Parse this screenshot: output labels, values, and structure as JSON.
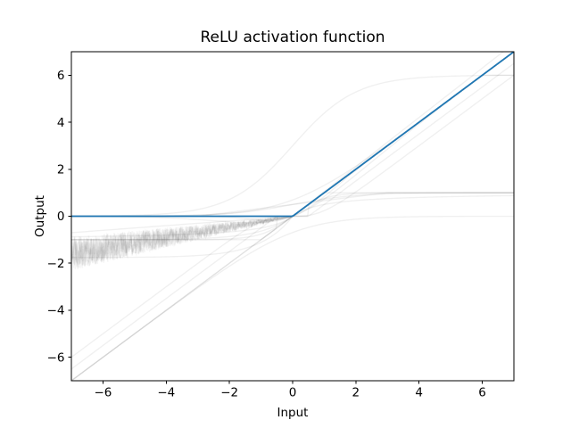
{
  "chart_data": {
    "type": "line",
    "title": "ReLU activation function",
    "xlabel": "Input",
    "ylabel": "Output",
    "xlim": [
      -7,
      7
    ],
    "ylim": [
      -7,
      7
    ],
    "xticks": {
      "values": [
        -6,
        -4,
        -2,
        0,
        2,
        4,
        6
      ],
      "labels": [
        "−6",
        "−4",
        "−2",
        "0",
        "2",
        "4",
        "6"
      ]
    },
    "yticks": {
      "values": [
        -6,
        -4,
        -2,
        0,
        2,
        4,
        6
      ],
      "labels": [
        "−6",
        "−4",
        "−2",
        "0",
        "2",
        "4",
        "6"
      ]
    },
    "grid": false,
    "legend": "none",
    "series": [
      {
        "name": "ReLU",
        "fn": "relu",
        "role": "highlighted",
        "color": "#1f77b4",
        "linewidth": 1.8,
        "key_points": [
          [
            -7,
            0
          ],
          [
            0,
            0
          ],
          [
            7,
            7
          ]
        ]
      }
    ],
    "background_curves": {
      "description": "Other activation functions drawn very faintly in gray behind the highlighted ReLU line",
      "color": "#000000",
      "opacity": 0.06,
      "linewidth": 1.4,
      "functions": [
        "identity",
        "hardshrink",
        "softshrink",
        "tanhshrink",
        "sigmoid",
        "tanh",
        "softsign",
        "hardtanh",
        "hardsigmoid",
        "softplus",
        "logsigmoid",
        "elu",
        "selu",
        "leaky_relu",
        "gelu",
        "silu",
        "relu6",
        "sigmoid6"
      ],
      "noisy": {
        "fn": "rrelu",
        "samples": 8,
        "slope_range": [
          0.125,
          0.3333
        ],
        "seed": 11,
        "opacity": 0.04
      }
    }
  }
}
